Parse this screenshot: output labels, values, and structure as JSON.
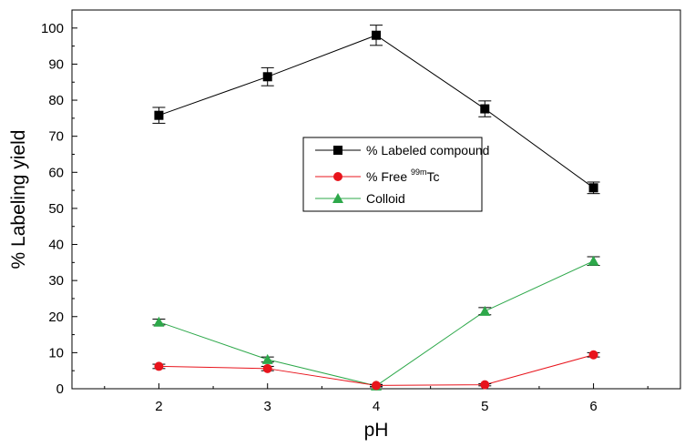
{
  "chart_data": {
    "type": "line",
    "xlabel": "pH",
    "ylabel": "% Labeling yield",
    "x": [
      2,
      3,
      4,
      5,
      6
    ],
    "xlim": [
      1.2,
      6.8
    ],
    "ylim": [
      0,
      105
    ],
    "xticks": [
      2,
      3,
      4,
      5,
      6
    ],
    "yticks": [
      0,
      10,
      20,
      30,
      40,
      50,
      60,
      70,
      80,
      90,
      100
    ],
    "grid": false,
    "legend_position": "center-right",
    "series": [
      {
        "name": "% Labeled compound",
        "marker": "square",
        "color": "#000000",
        "values": [
          75.8,
          86.5,
          98.0,
          77.6,
          55.7
        ],
        "errors": [
          2.2,
          2.5,
          2.8,
          2.2,
          1.6
        ]
      },
      {
        "name_prefix": "% Free ",
        "name_sup": "99m",
        "name_suffix": "Tc",
        "marker": "circle",
        "color": "#e8141c",
        "values": [
          6.2,
          5.6,
          0.9,
          1.1,
          9.4
        ],
        "errors": [
          0.6,
          0.6,
          0.3,
          0.3,
          0.6
        ]
      },
      {
        "name": "Colloid",
        "marker": "triangle",
        "color": "#2da84a",
        "values": [
          18.5,
          8.1,
          0.8,
          21.5,
          35.4
        ],
        "errors": [
          0.8,
          0.7,
          0.3,
          1.0,
          1.2
        ]
      }
    ]
  }
}
